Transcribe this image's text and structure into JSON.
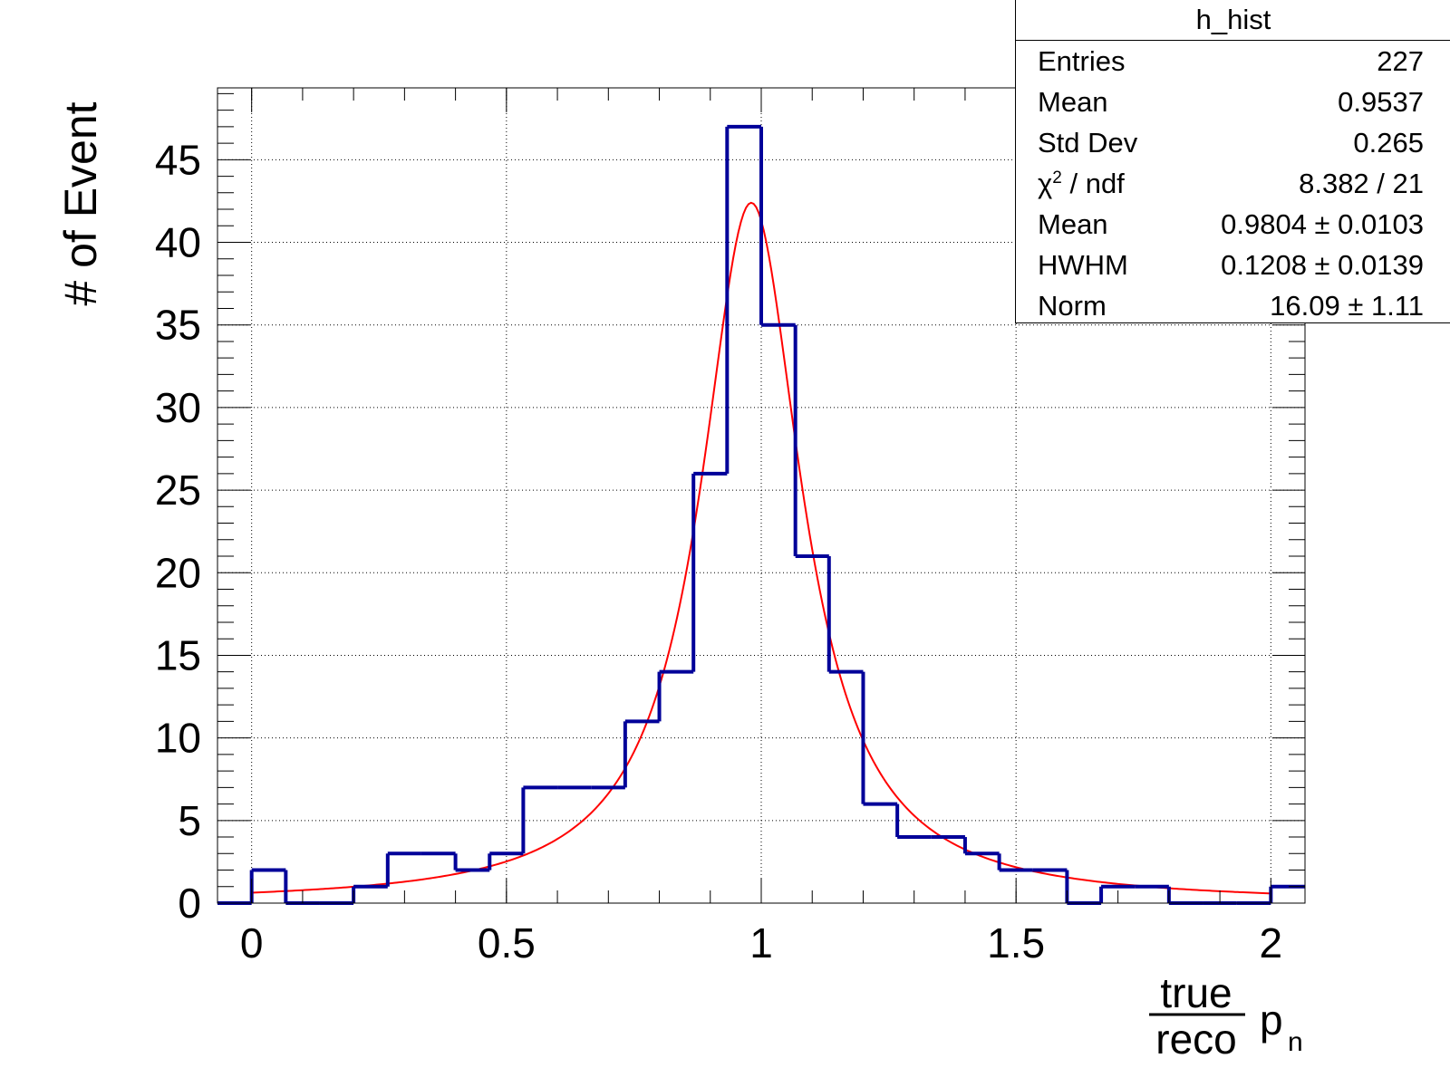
{
  "chart_data": {
    "type": "histogram",
    "title": "",
    "xlabel": {
      "fraction_numerator": "true",
      "fraction_denominator": "reco",
      "symbol": "p",
      "subscript": "n"
    },
    "ylabel": "# of Event",
    "xlim": [
      -0.067,
      2.067
    ],
    "ylim": [
      0,
      49.35
    ],
    "x_ticks": [
      "0",
      "0.5",
      "1",
      "1.5",
      "2"
    ],
    "y_ticks": [
      "0",
      "5",
      "10",
      "15",
      "20",
      "25",
      "30",
      "35",
      "40",
      "45"
    ],
    "grid": true,
    "bin_edges": [
      -0.067,
      0,
      0.067,
      0.133,
      0.2,
      0.267,
      0.333,
      0.4,
      0.467,
      0.533,
      0.6,
      0.667,
      0.733,
      0.8,
      0.867,
      0.933,
      1.0,
      1.067,
      1.133,
      1.2,
      1.267,
      1.333,
      1.4,
      1.467,
      1.533,
      1.6,
      1.667,
      1.733,
      1.8,
      1.867,
      1.933,
      2.0,
      2.067
    ],
    "counts": [
      0,
      2,
      0,
      0,
      1,
      3,
      3,
      2,
      3,
      7,
      7,
      7,
      11,
      14,
      26,
      47,
      35,
      21,
      14,
      6,
      4,
      4,
      3,
      2,
      2,
      0,
      1,
      1,
      0,
      0,
      0,
      1
    ],
    "histogram_color": "#000099",
    "fit": {
      "function": "Lorentzian",
      "color": "#ff0000",
      "range": [
        0,
        2
      ],
      "mean": 0.9804,
      "hwhm": 0.1208,
      "norm": 16.09
    },
    "stats_box": {
      "title": "h_hist",
      "rows": [
        {
          "label": "Entries",
          "value": "227"
        },
        {
          "label": "Mean",
          "value": "0.9537"
        },
        {
          "label": "Std Dev",
          "value": "0.265"
        },
        {
          "label": "χ",
          "label_sup": "2",
          "label_rest": " / ndf",
          "value": "8.382 / 21"
        },
        {
          "label": "Mean",
          "value": "0.9804 ± 0.0103"
        },
        {
          "label": "HWHM",
          "value": "0.1208 ± 0.0139"
        },
        {
          "label": "Norm",
          "value": "16.09 ± 1.11"
        }
      ]
    }
  }
}
